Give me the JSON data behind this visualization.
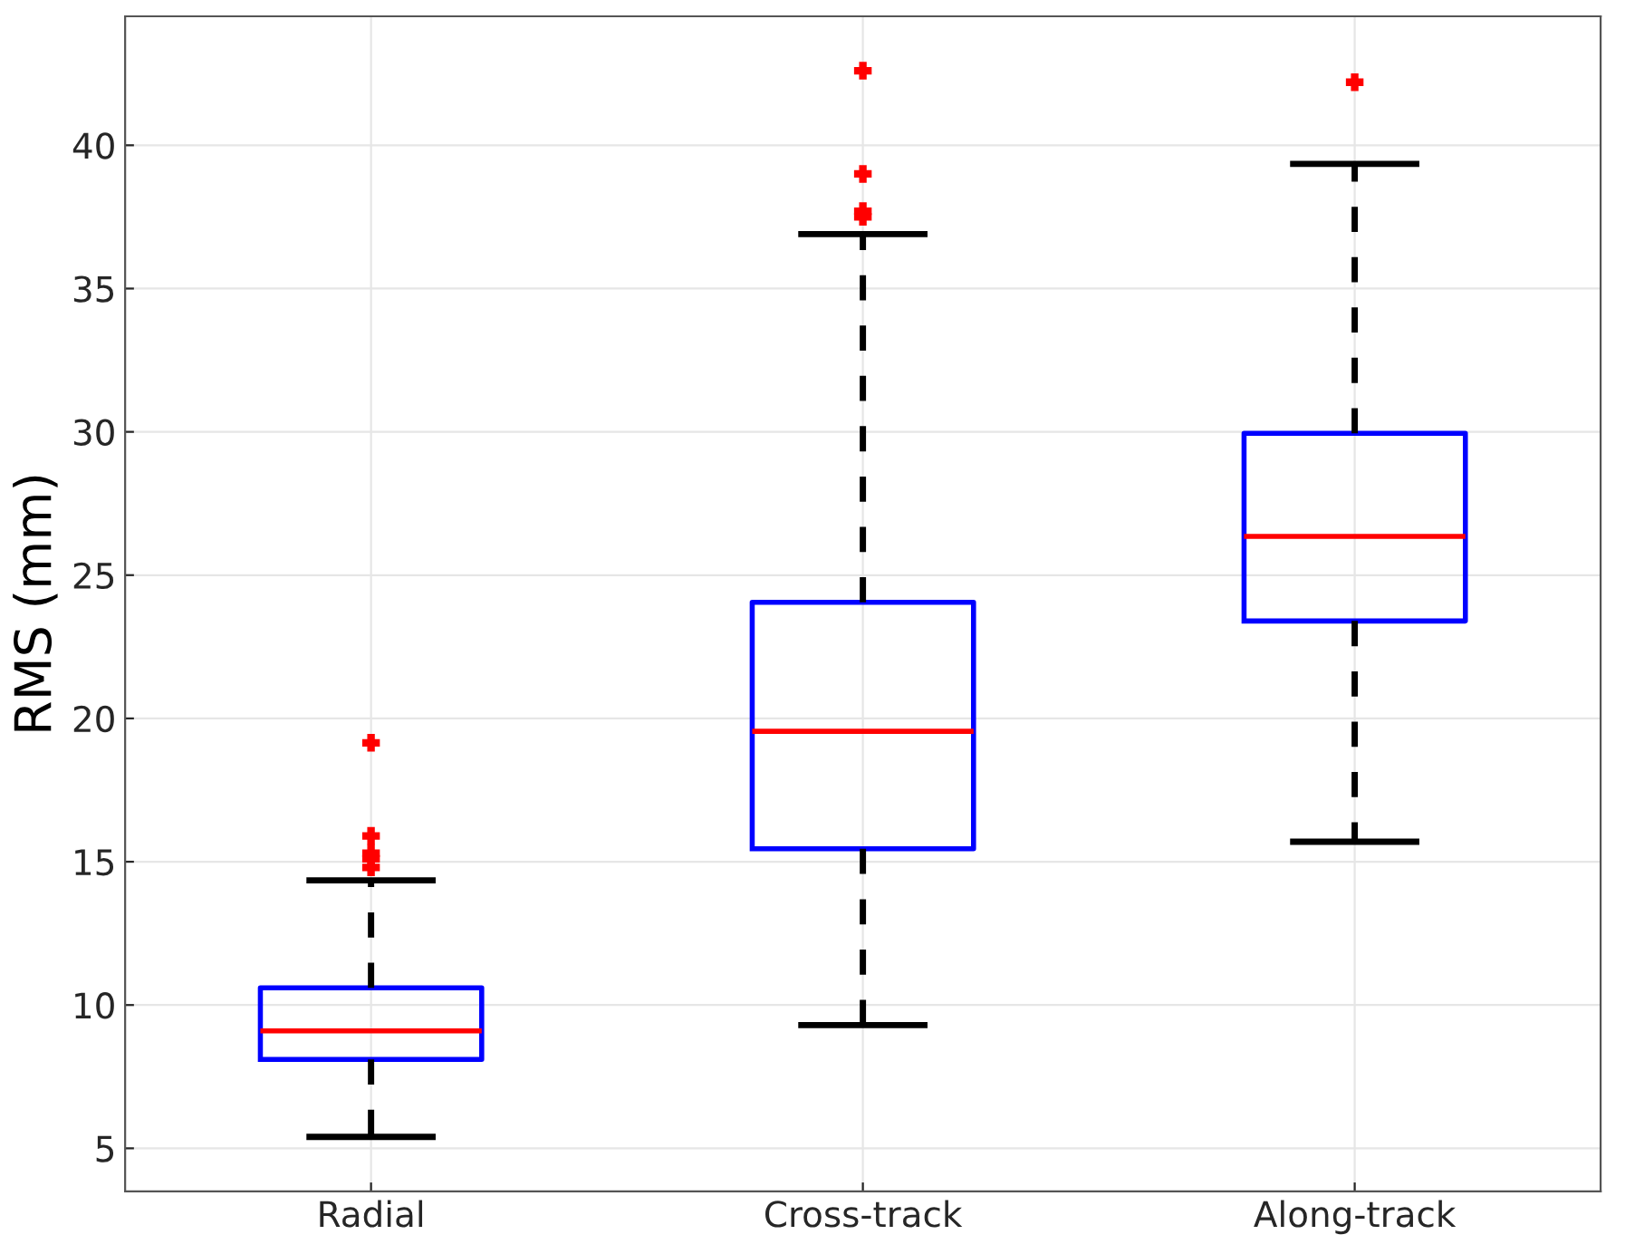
{
  "chart_data": {
    "type": "box",
    "ylabel": "RMS (mm)",
    "categories": [
      "Radial",
      "Cross-track",
      "Along-track"
    ],
    "boxes": [
      {
        "low": 5.4,
        "q1": 8.1,
        "median": 9.1,
        "q3": 10.6,
        "high": 14.35,
        "outliers": [
          19.15,
          15.9,
          15.3,
          15.1,
          14.8
        ]
      },
      {
        "low": 9.3,
        "q1": 15.45,
        "median": 19.55,
        "q3": 24.05,
        "high": 36.9,
        "outliers": [
          42.6,
          39.0,
          37.7,
          37.5
        ]
      },
      {
        "low": 15.7,
        "q1": 23.4,
        "median": 26.35,
        "q3": 29.95,
        "high": 39.35,
        "outliers": [
          42.2
        ]
      }
    ],
    "color": "#0000ff",
    "marker": "cross",
    "line_style": "dashed",
    "ylim": [
      3.5,
      44.5
    ],
    "yticks": [
      5,
      10,
      15,
      20,
      25,
      30,
      35,
      40
    ],
    "grid": true
  }
}
